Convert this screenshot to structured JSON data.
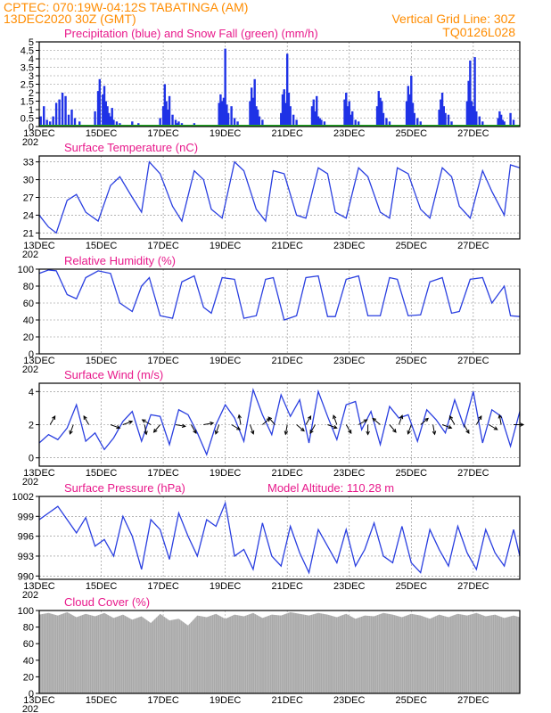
{
  "header": {
    "line1": "CPTEC:   070:19W-04:12S   TABATINGA (AM)",
    "line2_left": "13DEC2020 30Z (GMT)",
    "line2_right": "Vertical Grid Line: 30Z",
    "line3_right": "TQ0126L028"
  },
  "colors": {
    "header": "#ff8c00",
    "title": "#e8198b",
    "precip": "#1f32e6",
    "snow": "#22aa22",
    "line": "#2a3fe0",
    "cloud": "#a9a9a9",
    "arrow": "#000000"
  },
  "date_labels": [
    "13DEC",
    "15DEC",
    "17DEC",
    "19DEC",
    "21DEC",
    "23DEC",
    "25DEC",
    "27DEC"
  ],
  "year_stub": "202",
  "chart_data": [
    {
      "id": "precip",
      "type": "bar",
      "title": "Precipitation (blue) and Snow Fall (green) (mm/h)",
      "ylim": [
        0,
        5
      ],
      "yticks": [
        "0",
        "0.5",
        "1",
        "1.5",
        "2",
        "2.5",
        "3",
        "3.5",
        "4",
        "4.5",
        "5"
      ],
      "x_range_days": [
        0,
        15.5
      ],
      "series": [
        {
          "name": "Precipitation",
          "x": [
            0.05,
            0.15,
            0.25,
            0.35,
            0.45,
            0.55,
            0.65,
            0.75,
            0.85,
            0.95,
            1.05,
            1.15,
            1.3,
            1.8,
            1.9,
            1.95,
            2.05,
            2.1,
            2.15,
            2.2,
            2.25,
            2.3,
            2.35,
            2.4,
            2.5,
            2.6,
            3.0,
            3.1,
            3.2,
            3.4,
            3.9,
            4.0,
            4.05,
            4.1,
            4.15,
            4.2,
            4.3,
            4.4,
            4.45,
            4.5,
            4.55,
            4.6,
            5.0,
            5.1,
            5.8,
            5.85,
            5.9,
            5.95,
            6.0,
            6.05,
            6.1,
            6.2,
            6.3,
            6.4,
            6.8,
            6.85,
            6.9,
            6.95,
            7.0,
            7.05,
            7.1,
            7.2,
            7.8,
            7.85,
            7.9,
            7.95,
            8.0,
            8.05,
            8.1,
            8.2,
            8.3,
            8.8,
            8.85,
            8.9,
            8.95,
            9.0,
            9.05,
            9.1,
            9.2,
            9.85,
            9.9,
            9.95,
            10.0,
            10.05,
            10.1,
            10.2,
            10.3,
            10.9,
            10.95,
            11.0,
            11.05,
            11.1,
            11.2,
            11.3,
            11.85,
            11.9,
            11.95,
            12.0,
            12.05,
            12.1,
            12.2,
            12.3,
            12.9,
            12.95,
            13.0,
            13.05,
            13.1,
            13.2,
            13.3,
            13.8,
            13.85,
            13.9,
            13.95,
            14.0,
            14.05,
            14.1,
            14.2,
            14.3,
            14.8,
            14.85,
            14.9,
            14.95,
            15.0,
            15.2,
            15.3
          ],
          "values": [
            0.6,
            1.2,
            0.4,
            0.3,
            0.6,
            1.4,
            1.6,
            2.0,
            1.8,
            0.7,
            1.0,
            0.5,
            0.3,
            0.9,
            2.1,
            2.8,
            1.9,
            2.4,
            1.5,
            1.2,
            0.8,
            0.6,
            1.1,
            0.4,
            0.3,
            0.2,
            0.3,
            0.1,
            0.2,
            0.1,
            0.5,
            1.2,
            2.5,
            1.5,
            1.0,
            1.8,
            0.7,
            0.4,
            0.2,
            0.3,
            0.1,
            0.2,
            0.2,
            0.1,
            1.4,
            1.9,
            1.5,
            1.7,
            4.6,
            1.3,
            0.8,
            1.2,
            0.5,
            0.3,
            1.5,
            2.3,
            1.7,
            2.8,
            1.2,
            1.0,
            0.6,
            0.4,
            0.8,
            1.9,
            2.2,
            1.4,
            4.3,
            2.0,
            1.2,
            0.7,
            0.4,
            1.2,
            1.6,
            0.9,
            1.8,
            0.6,
            0.5,
            0.4,
            0.3,
            1.6,
            2.0,
            1.2,
            1.5,
            0.7,
            0.9,
            0.4,
            0.3,
            1.2,
            2.1,
            1.7,
            1.5,
            0.8,
            0.5,
            0.3,
            1.5,
            2.4,
            1.9,
            3.0,
            1.4,
            0.8,
            0.5,
            0.3,
            1.0,
            1.6,
            2.0,
            1.2,
            0.8,
            0.7,
            0.3,
            1.5,
            2.7,
            3.9,
            1.5,
            1.2,
            4.1,
            0.9,
            0.6,
            0.3,
            0.5,
            0.9,
            0.7,
            0.4,
            0.3,
            0.8,
            0.4
          ]
        },
        {
          "name": "Snow Fall",
          "x": [
            0,
            15.5
          ],
          "values": [
            0,
            0
          ]
        }
      ]
    },
    {
      "id": "temperature",
      "type": "line",
      "title": "Surface Temperature (nC)",
      "ylim": [
        20,
        34
      ],
      "yticks": [
        "21",
        "24",
        "27",
        "30",
        "33"
      ],
      "x_range_days": [
        0,
        15.5
      ],
      "x": [
        0,
        0.3,
        0.55,
        0.9,
        1.2,
        1.5,
        1.9,
        2.3,
        2.6,
        3.0,
        3.3,
        3.55,
        3.9,
        4.3,
        4.6,
        5.0,
        5.3,
        5.55,
        5.9,
        6.3,
        6.6,
        7.0,
        7.3,
        7.55,
        7.9,
        8.3,
        8.6,
        9.0,
        9.3,
        9.55,
        9.9,
        10.3,
        10.6,
        11.0,
        11.3,
        11.55,
        11.9,
        12.3,
        12.6,
        13.0,
        13.3,
        13.55,
        13.9,
        14.3,
        14.6,
        15.0,
        15.2,
        15.5
      ],
      "values": [
        24.0,
        22.0,
        21.0,
        26.5,
        27.5,
        24.5,
        23.0,
        29.0,
        30.5,
        27.0,
        24.5,
        33.0,
        31.0,
        25.5,
        23.0,
        31.5,
        30.0,
        25.0,
        23.5,
        33.0,
        31.5,
        25.0,
        23.0,
        31.5,
        31.0,
        24.0,
        23.5,
        32.0,
        31.0,
        24.5,
        23.5,
        32.0,
        30.5,
        24.5,
        23.5,
        32.0,
        31.0,
        25.0,
        23.5,
        32.0,
        30.5,
        25.5,
        23.5,
        31.5,
        28.0,
        24.0,
        32.5,
        32.0
      ]
    },
    {
      "id": "humidity",
      "type": "line",
      "title": "Relative Humidity (%)",
      "ylim": [
        0,
        100
      ],
      "yticks": [
        "0",
        "20",
        "40",
        "60",
        "80",
        "100"
      ],
      "x_range_days": [
        0,
        15.5
      ],
      "x": [
        0,
        0.3,
        0.55,
        0.9,
        1.2,
        1.5,
        1.9,
        2.3,
        2.6,
        3.0,
        3.3,
        3.55,
        3.9,
        4.3,
        4.6,
        5.0,
        5.3,
        5.55,
        5.9,
        6.3,
        6.6,
        7.0,
        7.3,
        7.55,
        7.9,
        8.3,
        8.6,
        9.0,
        9.3,
        9.55,
        9.9,
        10.3,
        10.6,
        11.0,
        11.3,
        11.55,
        11.9,
        12.3,
        12.6,
        13.0,
        13.3,
        13.55,
        13.9,
        14.3,
        14.6,
        15.0,
        15.2,
        15.5
      ],
      "values": [
        95,
        99,
        98,
        70,
        65,
        90,
        98,
        95,
        60,
        50,
        80,
        90,
        45,
        42,
        85,
        92,
        55,
        48,
        90,
        88,
        42,
        45,
        88,
        90,
        40,
        45,
        90,
        92,
        44,
        44,
        88,
        92,
        45,
        45,
        90,
        88,
        45,
        46,
        85,
        90,
        48,
        50,
        88,
        90,
        60,
        80,
        45,
        44
      ]
    },
    {
      "id": "wind",
      "type": "line",
      "title": "Surface Wind (m/s)",
      "ylim": [
        -0.5,
        4.5
      ],
      "yticks": [
        "0",
        "2",
        "4"
      ],
      "x_range_days": [
        0,
        15.5
      ],
      "x": [
        0,
        0.3,
        0.6,
        0.9,
        1.2,
        1.5,
        1.8,
        2.1,
        2.4,
        2.7,
        3.0,
        3.3,
        3.6,
        3.9,
        4.2,
        4.5,
        4.8,
        5.1,
        5.4,
        5.7,
        6.0,
        6.3,
        6.6,
        6.9,
        7.2,
        7.5,
        7.8,
        8.1,
        8.4,
        8.7,
        9.0,
        9.3,
        9.6,
        9.9,
        10.2,
        10.4,
        10.7,
        11.0,
        11.3,
        11.6,
        11.9,
        12.2,
        12.5,
        12.8,
        13.1,
        13.4,
        13.7,
        14.0,
        14.3,
        14.6,
        14.9,
        15.2,
        15.5
      ],
      "values": [
        0.9,
        1.4,
        1.1,
        1.8,
        3.2,
        1.0,
        1.5,
        0.5,
        1.2,
        2.2,
        2.8,
        1.0,
        2.6,
        2.5,
        0.8,
        2.9,
        2.6,
        1.5,
        0.2,
        2.0,
        3.2,
        2.4,
        1.0,
        4.1,
        2.6,
        1.4,
        3.8,
        2.5,
        3.5,
        0.9,
        4.0,
        2.5,
        1.1,
        3.2,
        3.4,
        1.7,
        2.8,
        0.8,
        3.1,
        2.4,
        2.6,
        1.0,
        2.9,
        2.3,
        1.5,
        3.5,
        1.9,
        4.0,
        0.9,
        2.9,
        2.5,
        0.7,
        2.8
      ],
      "arrows": [
        {
          "x": 0.35,
          "angle": -60
        },
        {
          "x": 1.1,
          "angle": 110
        },
        {
          "x": 1.6,
          "angle": -120
        },
        {
          "x": 2.3,
          "angle": 20
        },
        {
          "x": 2.7,
          "angle": -20
        },
        {
          "x": 3.4,
          "angle": 80
        },
        {
          "x": 3.6,
          "angle": -150
        },
        {
          "x": 3.9,
          "angle": 130
        },
        {
          "x": 4.4,
          "angle": 10
        },
        {
          "x": 4.9,
          "angle": 60
        },
        {
          "x": 5.3,
          "angle": -10
        },
        {
          "x": 5.8,
          "angle": 110
        },
        {
          "x": 6.2,
          "angle": 30
        },
        {
          "x": 6.5,
          "angle": -100
        },
        {
          "x": 6.8,
          "angle": 70
        },
        {
          "x": 7.2,
          "angle": -40
        },
        {
          "x": 7.6,
          "angle": -130
        },
        {
          "x": 8.0,
          "angle": 100
        },
        {
          "x": 8.3,
          "angle": 40
        },
        {
          "x": 8.6,
          "angle": -60
        },
        {
          "x": 8.9,
          "angle": 120
        },
        {
          "x": 9.3,
          "angle": 20
        },
        {
          "x": 9.6,
          "angle": -110
        },
        {
          "x": 9.9,
          "angle": 60
        },
        {
          "x": 10.3,
          "angle": -30
        },
        {
          "x": 10.6,
          "angle": 90
        },
        {
          "x": 11.0,
          "angle": -140
        },
        {
          "x": 11.3,
          "angle": 50
        },
        {
          "x": 11.6,
          "angle": -70
        },
        {
          "x": 12.0,
          "angle": 110
        },
        {
          "x": 12.3,
          "angle": -40
        },
        {
          "x": 12.7,
          "angle": 80
        },
        {
          "x": 13.0,
          "angle": 20
        },
        {
          "x": 13.4,
          "angle": -120
        },
        {
          "x": 13.7,
          "angle": 60
        },
        {
          "x": 14.1,
          "angle": -60
        },
        {
          "x": 14.5,
          "angle": 30
        },
        {
          "x": 14.9,
          "angle": -100
        },
        {
          "x": 15.3,
          "angle": 0
        }
      ]
    },
    {
      "id": "pressure",
      "type": "line",
      "title": "Surface Pressure (hPa)",
      "annotation": "Model Altitude: 110.28 m",
      "ylim": [
        989.5,
        1002
      ],
      "yticks": [
        "990",
        "993",
        "996",
        "999",
        "1002"
      ],
      "x_range_days": [
        0,
        15.5
      ],
      "x": [
        0,
        0.3,
        0.6,
        0.9,
        1.2,
        1.5,
        1.8,
        2.1,
        2.4,
        2.7,
        3.0,
        3.3,
        3.6,
        3.9,
        4.2,
        4.5,
        4.8,
        5.1,
        5.4,
        5.7,
        6.0,
        6.3,
        6.6,
        6.9,
        7.2,
        7.5,
        7.8,
        8.1,
        8.4,
        8.7,
        9.0,
        9.3,
        9.6,
        9.9,
        10.2,
        10.5,
        10.8,
        11.1,
        11.4,
        11.7,
        12.0,
        12.3,
        12.6,
        12.9,
        13.2,
        13.5,
        13.8,
        14.1,
        14.4,
        14.7,
        15.0,
        15.3,
        15.5
      ],
      "values": [
        998.5,
        999.5,
        1000.5,
        998.5,
        996.5,
        998.8,
        994.5,
        995.5,
        993.0,
        999.0,
        996.0,
        991.0,
        998.5,
        997.0,
        992.5,
        999.5,
        996.0,
        993.0,
        998.5,
        997.5,
        1001.0,
        993.0,
        994.0,
        991.0,
        998.0,
        993.0,
        991.5,
        997.5,
        993.5,
        990.5,
        997.0,
        994.5,
        992.0,
        997.0,
        991.5,
        994.0,
        998.0,
        993.0,
        992.0,
        997.5,
        992.0,
        990.5,
        997.0,
        994.0,
        991.5,
        997.5,
        993.5,
        991.0,
        997.0,
        993.5,
        991.5,
        997.0,
        993.0
      ]
    },
    {
      "id": "cloud",
      "type": "bar",
      "title": "Cloud Cover (%)",
      "ylim": [
        0,
        100
      ],
      "yticks": [
        "0",
        "20",
        "40",
        "60",
        "80",
        "100"
      ],
      "x_range_days": [
        0,
        15.5
      ],
      "x": [
        0,
        0.3,
        0.6,
        0.9,
        1.2,
        1.5,
        1.8,
        2.1,
        2.4,
        2.7,
        3.0,
        3.3,
        3.6,
        3.9,
        4.2,
        4.5,
        4.8,
        5.1,
        5.4,
        5.7,
        6.0,
        6.3,
        6.6,
        6.9,
        7.2,
        7.5,
        7.8,
        8.1,
        8.4,
        8.7,
        9.0,
        9.3,
        9.6,
        9.9,
        10.2,
        10.5,
        10.8,
        11.1,
        11.4,
        11.7,
        12.0,
        12.3,
        12.6,
        12.9,
        13.2,
        13.5,
        13.8,
        14.1,
        14.4,
        14.7,
        15.0,
        15.3,
        15.5
      ],
      "values": [
        95,
        97,
        94,
        98,
        92,
        96,
        93,
        97,
        91,
        95,
        89,
        93,
        85,
        96,
        88,
        90,
        82,
        94,
        92,
        96,
        90,
        95,
        93,
        97,
        91,
        95,
        94,
        98,
        96,
        94,
        97,
        95,
        92,
        96,
        90,
        94,
        93,
        97,
        95,
        92,
        96,
        94,
        90,
        95,
        92,
        96,
        94,
        97,
        93,
        95,
        91,
        94,
        92
      ]
    }
  ]
}
